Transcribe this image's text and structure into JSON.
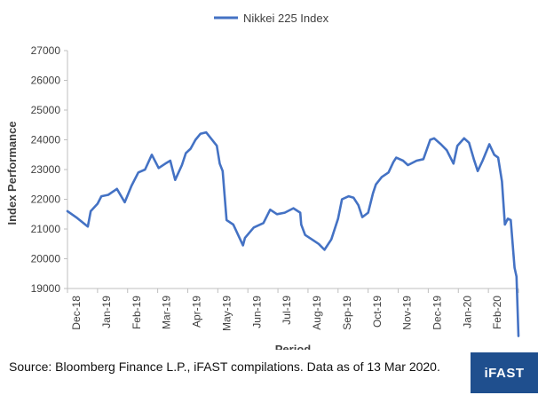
{
  "colors": {
    "line": "#4472c4",
    "axis": "#bfbfbf",
    "text": "#404040",
    "brand_bg": "#1f4f8e"
  },
  "footer": {
    "source": "Source: Bloomberg Finance L.P., iFAST compilations. Data as of 13 Mar 2020.",
    "brand": "iFAST"
  },
  "chart_data": {
    "type": "line",
    "title": "",
    "xlabel": "Period",
    "ylabel": "Index Performance",
    "ylim": [
      19000,
      27000
    ],
    "yticks": [
      19000,
      20000,
      21000,
      22000,
      23000,
      24000,
      25000,
      26000,
      27000
    ],
    "xticks": [
      "Dec-18",
      "Jan-19",
      "Feb-19",
      "Mar-19",
      "Apr-19",
      "May-19",
      "Jun-19",
      "Jul-19",
      "Aug-19",
      "Sep-19",
      "Oct-19",
      "Nov-19",
      "Dec-19",
      "Jan-20",
      "Feb-20"
    ],
    "xrange": [
      "2018-12-04",
      "2020-03-13"
    ],
    "legend": {
      "position": "top-center"
    },
    "grid": false,
    "series": [
      {
        "name": "Nikkei 225 Index",
        "points": [
          [
            "2018-12-04",
            21600
          ],
          [
            "2018-12-14",
            21370
          ],
          [
            "2018-12-25",
            21080
          ],
          [
            "2018-12-28",
            21600
          ],
          [
            "2019-01-04",
            21850
          ],
          [
            "2019-01-08",
            22100
          ],
          [
            "2019-01-15",
            22150
          ],
          [
            "2019-01-24",
            22350
          ],
          [
            "2019-02-01",
            21900
          ],
          [
            "2019-02-08",
            22450
          ],
          [
            "2019-02-15",
            22900
          ],
          [
            "2019-02-22",
            23000
          ],
          [
            "2019-03-01",
            23500
          ],
          [
            "2019-03-08",
            23050
          ],
          [
            "2019-03-15",
            23200
          ],
          [
            "2019-03-20",
            23300
          ],
          [
            "2019-03-25",
            22650
          ],
          [
            "2019-04-01",
            23150
          ],
          [
            "2019-04-05",
            23550
          ],
          [
            "2019-04-10",
            23700
          ],
          [
            "2019-04-15",
            24000
          ],
          [
            "2019-04-20",
            24200
          ],
          [
            "2019-04-26",
            24250
          ],
          [
            "2019-05-07",
            23800
          ],
          [
            "2019-05-10",
            23200
          ],
          [
            "2019-05-13",
            22950
          ],
          [
            "2019-05-17",
            21300
          ],
          [
            "2019-05-24",
            21150
          ],
          [
            "2019-06-03",
            20450
          ],
          [
            "2019-06-05",
            20700
          ],
          [
            "2019-06-14",
            21050
          ],
          [
            "2019-06-24",
            21200
          ],
          [
            "2019-07-01",
            21650
          ],
          [
            "2019-07-08",
            21500
          ],
          [
            "2019-07-16",
            21550
          ],
          [
            "2019-07-25",
            21700
          ],
          [
            "2019-08-01",
            21550
          ],
          [
            "2019-08-02",
            21150
          ],
          [
            "2019-08-06",
            20800
          ],
          [
            "2019-08-13",
            20650
          ],
          [
            "2019-08-20",
            20500
          ],
          [
            "2019-08-26",
            20300
          ],
          [
            "2019-09-02",
            20650
          ],
          [
            "2019-09-09",
            21350
          ],
          [
            "2019-09-13",
            22000
          ],
          [
            "2019-09-20",
            22100
          ],
          [
            "2019-09-25",
            22050
          ],
          [
            "2019-09-30",
            21800
          ],
          [
            "2019-10-04",
            21400
          ],
          [
            "2019-10-10",
            21550
          ],
          [
            "2019-10-15",
            22200
          ],
          [
            "2019-10-18",
            22500
          ],
          [
            "2019-10-24",
            22750
          ],
          [
            "2019-10-31",
            22900
          ],
          [
            "2019-11-05",
            23250
          ],
          [
            "2019-11-08",
            23400
          ],
          [
            "2019-11-15",
            23300
          ],
          [
            "2019-11-20",
            23150
          ],
          [
            "2019-11-29",
            23300
          ],
          [
            "2019-12-06",
            23350
          ],
          [
            "2019-12-13",
            24000
          ],
          [
            "2019-12-17",
            24050
          ],
          [
            "2019-12-24",
            23850
          ],
          [
            "2019-12-30",
            23650
          ],
          [
            "2020-01-06",
            23200
          ],
          [
            "2020-01-10",
            23800
          ],
          [
            "2020-01-17",
            24050
          ],
          [
            "2020-01-22",
            23900
          ],
          [
            "2020-01-27",
            23350
          ],
          [
            "2020-01-31",
            22950
          ],
          [
            "2020-02-05",
            23300
          ],
          [
            "2020-02-12",
            23850
          ],
          [
            "2020-02-17",
            23500
          ],
          [
            "2020-02-21",
            23400
          ],
          [
            "2020-02-25",
            22600
          ],
          [
            "2020-02-28",
            21150
          ],
          [
            "2020-03-02",
            21350
          ],
          [
            "2020-03-05",
            21300
          ],
          [
            "2020-03-09",
            19700
          ],
          [
            "2020-03-11",
            19400
          ],
          [
            "2020-03-13",
            17400
          ]
        ]
      }
    ]
  }
}
